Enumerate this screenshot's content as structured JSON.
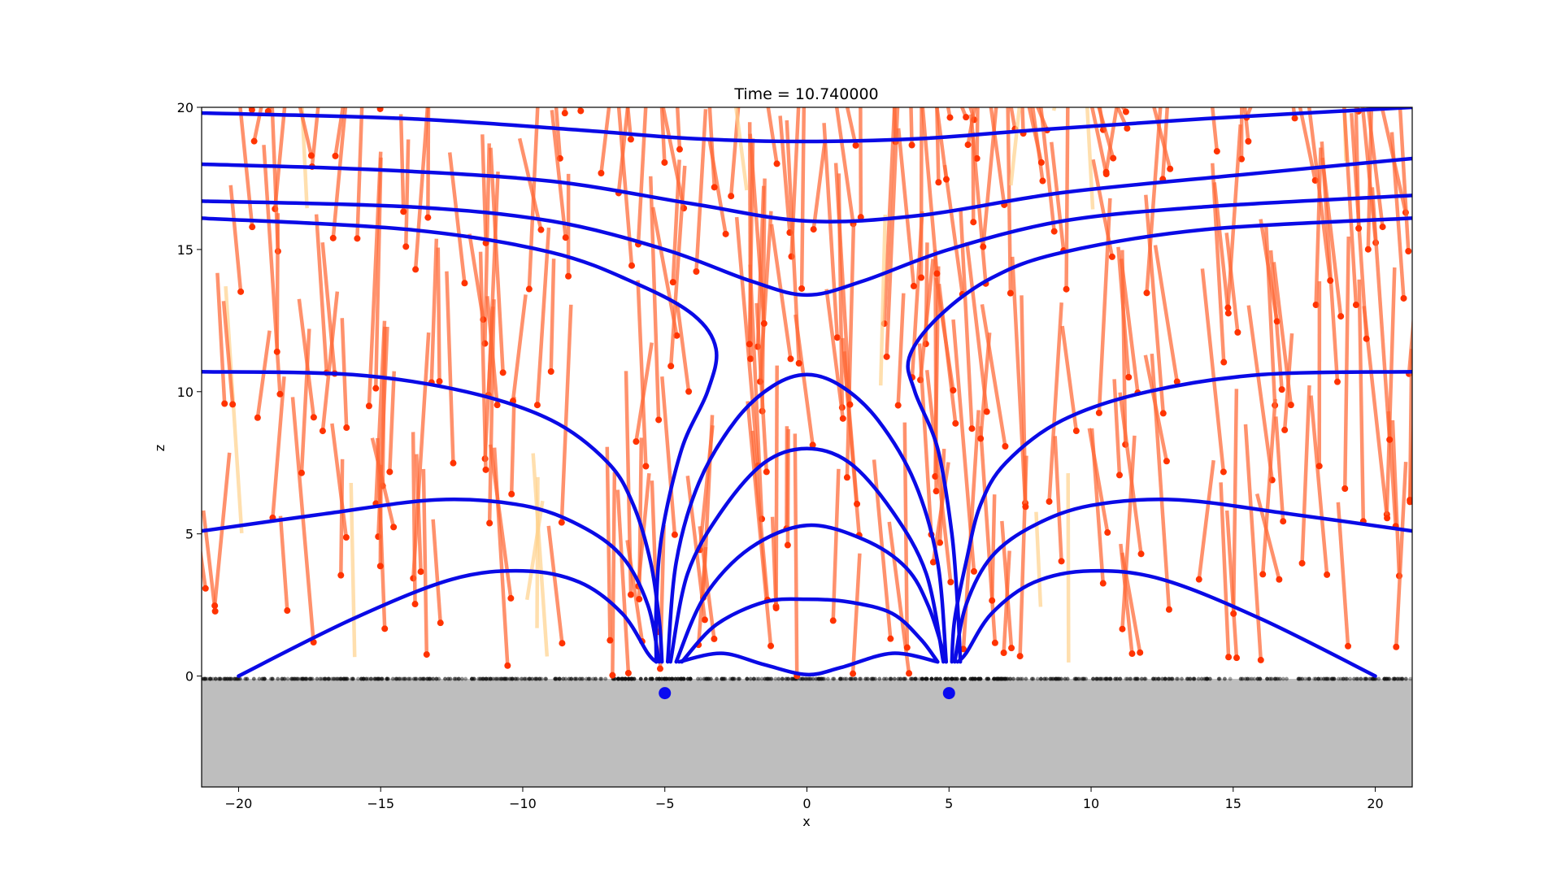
{
  "chart_data": {
    "type": "line",
    "title": "Time = 10.740000",
    "xlabel": "x",
    "ylabel": "z",
    "xlim": [
      -21.3,
      21.3
    ],
    "ylim": [
      -3.9,
      20
    ],
    "xticks": [
      "−20",
      "−15",
      "−10",
      "−5",
      "0",
      "5",
      "10",
      "15",
      "20"
    ],
    "xtick_values": [
      -20,
      -15,
      -10,
      -5,
      0,
      5,
      10,
      15,
      20
    ],
    "yticks": [
      "0",
      "5",
      "10",
      "15",
      "20"
    ],
    "ytick_values": [
      0,
      5,
      10,
      15,
      20
    ],
    "grid": false,
    "ground": {
      "z_top": -0.1,
      "color": "#bebebe"
    },
    "colors": {
      "field_line": "#0a0ae6",
      "particle_trail": "#ff6633",
      "particle_head": "#ff3300",
      "faint_trail": "#ffd28c",
      "source": "#0a0af0"
    },
    "sources": [
      {
        "x": -5.0,
        "z": -0.6
      },
      {
        "x": 5.0,
        "z": -0.6
      }
    ],
    "field_lines": [
      {
        "points": [
          [
            -21.3,
            19.8
          ],
          [
            -14,
            19.6
          ],
          [
            -8,
            19.2
          ],
          [
            -4,
            18.9
          ],
          [
            0,
            18.8
          ],
          [
            4,
            18.9
          ],
          [
            8,
            19.2
          ],
          [
            14,
            19.6
          ],
          [
            21.3,
            20.0
          ]
        ]
      },
      {
        "points": [
          [
            -21.3,
            18.0
          ],
          [
            -15,
            17.8
          ],
          [
            -9,
            17.4
          ],
          [
            -4,
            16.6
          ],
          [
            0,
            16.0
          ],
          [
            4,
            16.2
          ],
          [
            9,
            17.0
          ],
          [
            15,
            17.6
          ],
          [
            21.3,
            18.2
          ]
        ]
      },
      {
        "points": [
          [
            -21.3,
            16.7
          ],
          [
            -14,
            16.5
          ],
          [
            -9,
            16.0
          ],
          [
            -5,
            15.0
          ],
          [
            -2,
            13.9
          ],
          [
            0,
            13.4
          ],
          [
            2,
            13.9
          ],
          [
            5,
            15.0
          ],
          [
            9,
            16.0
          ],
          [
            14,
            16.5
          ],
          [
            21.3,
            16.9
          ]
        ]
      },
      {
        "points": [
          [
            -21.3,
            16.1
          ],
          [
            -14,
            15.7
          ],
          [
            -9,
            14.9
          ],
          [
            -6,
            13.8
          ],
          [
            -4,
            12.7
          ],
          [
            -3.2,
            11.5
          ],
          [
            -3.5,
            10.0
          ],
          [
            -4.4,
            8.0
          ],
          [
            -5.1,
            5.0
          ],
          [
            -5.3,
            2.5
          ],
          [
            -5.3,
            0.5
          ]
        ]
      },
      {
        "points": [
          [
            21.3,
            16.1
          ],
          [
            14,
            15.7
          ],
          [
            9,
            14.9
          ],
          [
            6.5,
            14.0
          ],
          [
            4.6,
            12.6
          ],
          [
            3.6,
            11.2
          ],
          [
            3.8,
            10.0
          ],
          [
            4.6,
            8.0
          ],
          [
            5.1,
            5.0
          ],
          [
            5.3,
            2.5
          ],
          [
            5.4,
            0.5
          ]
        ]
      },
      {
        "points": [
          [
            -21.3,
            10.7
          ],
          [
            -16,
            10.6
          ],
          [
            -12,
            10.0
          ],
          [
            -9,
            9.0
          ],
          [
            -7,
            7.5
          ],
          [
            -6.1,
            6.0
          ],
          [
            -5.5,
            4.0
          ],
          [
            -5.2,
            2.0
          ],
          [
            -5.1,
            0.5
          ]
        ]
      },
      {
        "points": [
          [
            21.3,
            10.7
          ],
          [
            16,
            10.6
          ],
          [
            12,
            10.0
          ],
          [
            9,
            9.0
          ],
          [
            7,
            7.5
          ],
          [
            6.1,
            6.0
          ],
          [
            5.6,
            4.0
          ],
          [
            5.2,
            2.0
          ],
          [
            5.1,
            0.5
          ]
        ]
      },
      {
        "points": [
          [
            -21.3,
            5.1
          ],
          [
            -17,
            5.7
          ],
          [
            -13,
            6.2
          ],
          [
            -10,
            6.0
          ],
          [
            -8,
            5.3
          ],
          [
            -6.5,
            4.2
          ],
          [
            -5.6,
            2.5
          ],
          [
            -5.2,
            0.5
          ]
        ]
      },
      {
        "points": [
          [
            21.3,
            5.1
          ],
          [
            17,
            5.7
          ],
          [
            13,
            6.2
          ],
          [
            10,
            6.0
          ],
          [
            8,
            5.3
          ],
          [
            6.5,
            4.2
          ],
          [
            5.6,
            2.5
          ],
          [
            5.2,
            0.5
          ]
        ]
      },
      {
        "points": [
          [
            -20,
            0.0
          ],
          [
            -16,
            2.0
          ],
          [
            -12.5,
            3.4
          ],
          [
            -10,
            3.7
          ],
          [
            -8,
            3.3
          ],
          [
            -6.5,
            2.2
          ],
          [
            -5.6,
            0.8
          ],
          [
            -5.3,
            0.5
          ]
        ]
      },
      {
        "points": [
          [
            20,
            0.0
          ],
          [
            16,
            2.0
          ],
          [
            12.5,
            3.4
          ],
          [
            10,
            3.7
          ],
          [
            8,
            3.3
          ],
          [
            6.5,
            2.2
          ],
          [
            5.6,
            0.8
          ],
          [
            5.3,
            0.5
          ]
        ]
      },
      {
        "points": [
          [
            -4.9,
            0.5
          ],
          [
            -4.6,
            4.0
          ],
          [
            -3.8,
            6.8
          ],
          [
            -2.5,
            9.0
          ],
          [
            -1.2,
            10.2
          ],
          [
            0,
            10.6
          ],
          [
            1.2,
            10.2
          ],
          [
            2.5,
            9.0
          ],
          [
            3.8,
            6.8
          ],
          [
            4.6,
            4.0
          ],
          [
            4.9,
            0.5
          ]
        ]
      },
      {
        "points": [
          [
            -4.8,
            0.5
          ],
          [
            -4.2,
            3.6
          ],
          [
            -3.0,
            5.8
          ],
          [
            -1.5,
            7.5
          ],
          [
            0,
            8.0
          ],
          [
            1.5,
            7.5
          ],
          [
            3.0,
            5.8
          ],
          [
            4.2,
            3.6
          ],
          [
            4.8,
            0.5
          ]
        ]
      },
      {
        "points": [
          [
            -4.6,
            0.5
          ],
          [
            -3.6,
            2.8
          ],
          [
            -2.0,
            4.5
          ],
          [
            0,
            5.3
          ],
          [
            2.0,
            4.8
          ],
          [
            3.5,
            3.8
          ],
          [
            4.3,
            2.4
          ],
          [
            4.9,
            0.5
          ]
        ]
      },
      {
        "points": [
          [
            -4.4,
            0.5
          ],
          [
            -3.2,
            1.8
          ],
          [
            -1.5,
            2.6
          ],
          [
            0,
            2.7
          ],
          [
            1.5,
            2.6
          ],
          [
            3.0,
            2.2
          ],
          [
            4.0,
            1.3
          ],
          [
            4.6,
            0.5
          ]
        ]
      },
      {
        "points": [
          [
            -4.5,
            0.5
          ],
          [
            -3,
            0.8
          ],
          [
            -1.5,
            0.4
          ],
          [
            0,
            0.05
          ],
          [
            1.2,
            0.3
          ],
          [
            3.0,
            0.8
          ],
          [
            4.6,
            0.5
          ]
        ]
      }
    ]
  }
}
